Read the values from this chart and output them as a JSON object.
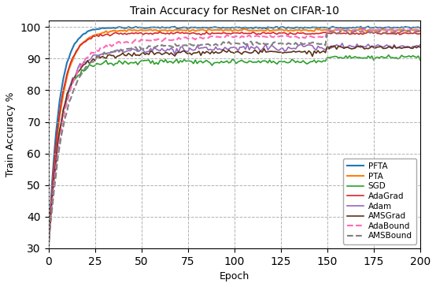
{
  "title": "Train Accuracy for ResNet on CIFAR-10",
  "xlabel": "Epoch",
  "ylabel": "Train Accuracy %",
  "xlim": [
    0,
    200
  ],
  "ylim": [
    30,
    102
  ],
  "yticks": [
    30,
    40,
    50,
    60,
    70,
    80,
    90,
    100
  ],
  "xticks": [
    0,
    25,
    50,
    75,
    100,
    125,
    150,
    175,
    200
  ],
  "series": [
    {
      "label": "PFTA",
      "color": "#1f77b4",
      "linestyle": "solid",
      "linewidth": 1.5,
      "profile": "pfta"
    },
    {
      "label": "PTA",
      "color": "#ff7f0e",
      "linestyle": "solid",
      "linewidth": 1.5,
      "profile": "pta"
    },
    {
      "label": "SGD",
      "color": "#2ca02c",
      "linestyle": "solid",
      "linewidth": 1.2,
      "profile": "sgd"
    },
    {
      "label": "AdaGrad",
      "color": "#d62728",
      "linestyle": "solid",
      "linewidth": 1.2,
      "profile": "adagrad"
    },
    {
      "label": "Adam",
      "color": "#9467bd",
      "linestyle": "solid",
      "linewidth": 1.2,
      "profile": "adam"
    },
    {
      "label": "AMSGrad",
      "color": "#5c3317",
      "linestyle": "solid",
      "linewidth": 1.2,
      "profile": "amsgrad"
    },
    {
      "label": "AdaBound",
      "color": "#ff69b4",
      "linestyle": "dashed",
      "linewidth": 1.5,
      "profile": "adabound"
    },
    {
      "label": "AMSBound",
      "color": "#808080",
      "linestyle": "dashed",
      "linewidth": 1.5,
      "profile": "amsbound"
    }
  ],
  "figsize": [
    5.54,
    3.64
  ],
  "dpi": 100
}
